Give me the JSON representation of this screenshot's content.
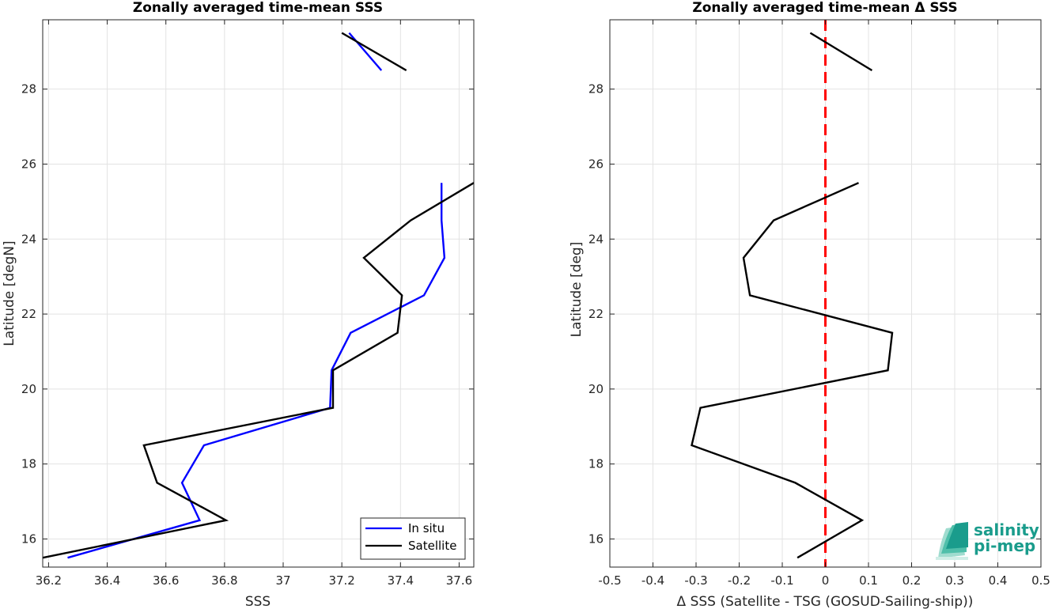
{
  "chart_data": [
    {
      "type": "line",
      "title": "Zonally averaged time-mean SSS",
      "xlabel": "SSS",
      "ylabel": "Latitude [degN]",
      "xlim": [
        36.18,
        37.65
      ],
      "ylim": [
        15.25,
        29.85
      ],
      "xticks": [
        36.2,
        36.4,
        36.6,
        36.8,
        37,
        37.2,
        37.4,
        37.6
      ],
      "xtick_labels": [
        "36.2",
        "36.4",
        "36.6",
        "36.8",
        "37",
        "37.2",
        "37.4",
        "37.6"
      ],
      "yticks": [
        16,
        18,
        20,
        22,
        24,
        26,
        28
      ],
      "ytick_labels": [
        "16",
        "18",
        "20",
        "22",
        "24",
        "26",
        "28"
      ],
      "grid": true,
      "legend": {
        "position": "bottom-right",
        "entries": [
          "In situ",
          "Satellite"
        ]
      },
      "series": [
        {
          "name": "In situ",
          "color": "#0000ff",
          "segments": [
            [
              [
                36.265,
                15.5
              ],
              [
                36.715,
                16.5
              ],
              [
                36.655,
                17.5
              ],
              [
                36.73,
                18.5
              ],
              [
                37.16,
                19.5
              ],
              [
                37.165,
                20.5
              ],
              [
                37.23,
                21.5
              ],
              [
                37.48,
                22.5
              ],
              [
                37.55,
                23.5
              ],
              [
                37.54,
                24.5
              ],
              [
                37.54,
                25.5
              ]
            ],
            [
              [
                37.225,
                29.5
              ],
              [
                37.335,
                28.5
              ]
            ]
          ]
        },
        {
          "name": "Satellite",
          "color": "#000000",
          "segments": [
            [
              [
                36.18,
                15.5
              ],
              [
                36.805,
                16.5
              ],
              [
                36.57,
                17.5
              ],
              [
                36.525,
                18.5
              ],
              [
                37.17,
                19.5
              ],
              [
                37.17,
                20.5
              ],
              [
                37.39,
                21.5
              ],
              [
                37.405,
                22.5
              ],
              [
                37.275,
                23.5
              ],
              [
                37.435,
                24.5
              ],
              [
                37.65,
                25.5
              ]
            ],
            [
              [
                37.2,
                29.5
              ],
              [
                37.42,
                28.5
              ]
            ]
          ]
        }
      ]
    },
    {
      "type": "line",
      "title": "Zonally averaged time-mean Δ SSS",
      "xlabel": "Δ SSS (Satellite - TSG (GOSUD-Sailing-ship))",
      "ylabel": "Latitude [deg]",
      "xlim": [
        -0.5,
        0.5
      ],
      "ylim": [
        15.25,
        29.85
      ],
      "xticks": [
        -0.5,
        -0.4,
        -0.3,
        -0.2,
        -0.1,
        0,
        0.1,
        0.2,
        0.3,
        0.4,
        0.5
      ],
      "xtick_labels": [
        "-0.5",
        "-0.4",
        "-0.3",
        "-0.2",
        "-0.1",
        "0",
        "0.1",
        "0.2",
        "0.3",
        "0.4",
        "0.5"
      ],
      "yticks": [
        16,
        18,
        20,
        22,
        24,
        26,
        28
      ],
      "ytick_labels": [
        "16",
        "18",
        "20",
        "22",
        "24",
        "26",
        "28"
      ],
      "grid": true,
      "reference_line": {
        "x": 0,
        "color": "#ff0000",
        "style": "dashed"
      },
      "series": [
        {
          "color": "#000000",
          "segments": [
            [
              [
                -0.065,
                15.5
              ],
              [
                0.085,
                16.5
              ],
              [
                -0.07,
                17.5
              ],
              [
                -0.31,
                18.5
              ],
              [
                -0.29,
                19.5
              ],
              [
                0.145,
                20.5
              ],
              [
                0.155,
                21.5
              ],
              [
                -0.175,
                22.5
              ],
              [
                -0.19,
                23.5
              ],
              [
                -0.12,
                24.5
              ],
              [
                0.077,
                25.5
              ]
            ],
            [
              [
                -0.035,
                29.5
              ],
              [
                0.108,
                28.5
              ]
            ]
          ]
        }
      ]
    }
  ],
  "logo": {
    "line1": "salinity",
    "line2": "pi-mep",
    "color": "#1a9c8c"
  }
}
